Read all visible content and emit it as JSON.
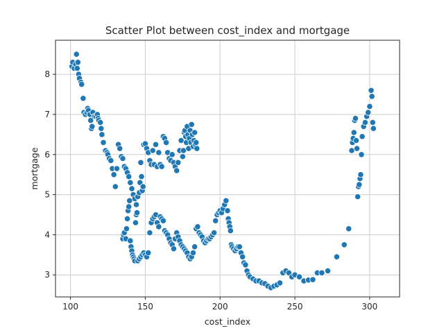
{
  "chart_data": {
    "type": "scatter",
    "title": "Scatter Plot between cost_index and mortgage",
    "xlabel": "cost_index",
    "ylabel": "mortgage",
    "xlim": [
      90,
      320
    ],
    "ylim": [
      2.45,
      8.85
    ],
    "xticks": [
      100,
      150,
      200,
      250,
      300
    ],
    "yticks": [
      3,
      4,
      5,
      6,
      7,
      8
    ],
    "grid": true,
    "color": "#1f77b4",
    "series": [
      {
        "points": [
          [
            101,
            8.2
          ],
          [
            101.5,
            8.3
          ],
          [
            102.5,
            8.15
          ],
          [
            103.5,
            8.25
          ],
          [
            104,
            8.5
          ],
          [
            104.5,
            8.15
          ],
          [
            105,
            8.3
          ],
          [
            105.5,
            8.0
          ],
          [
            106,
            7.9
          ],
          [
            107,
            7.8
          ],
          [
            107.5,
            7.75
          ],
          [
            108.5,
            7.4
          ],
          [
            109,
            7.05
          ],
          [
            110,
            7.0
          ],
          [
            111,
            7.05
          ],
          [
            111.5,
            7.15
          ],
          [
            112,
            7.1
          ],
          [
            113,
            7.0
          ],
          [
            113.5,
            6.85
          ],
          [
            114,
            6.65
          ],
          [
            114.5,
            6.7
          ],
          [
            115,
            7.05
          ],
          [
            116,
            6.95
          ],
          [
            117,
            6.95
          ],
          [
            118,
            7.0
          ],
          [
            118.5,
            6.9
          ],
          [
            119,
            6.85
          ],
          [
            120,
            6.8
          ],
          [
            120.5,
            6.65
          ],
          [
            121,
            6.5
          ],
          [
            122,
            6.3
          ],
          [
            123,
            6.1
          ],
          [
            123.5,
            6.1
          ],
          [
            124.5,
            6.05
          ],
          [
            125,
            6.0
          ],
          [
            126,
            5.9
          ],
          [
            127,
            5.85
          ],
          [
            128,
            5.65
          ],
          [
            129,
            5.5
          ],
          [
            130,
            5.2
          ],
          [
            131,
            5.65
          ],
          [
            132,
            6.25
          ],
          [
            133,
            6.15
          ],
          [
            134,
            5.95
          ],
          [
            135,
            5.9
          ],
          [
            136,
            5.7
          ],
          [
            137,
            5.65
          ],
          [
            138,
            5.55
          ],
          [
            139,
            5.45
          ],
          [
            140,
            5.3
          ],
          [
            141,
            5.15
          ],
          [
            142,
            5.0
          ],
          [
            143,
            4.9
          ],
          [
            144,
            4.75
          ],
          [
            145,
            4.95
          ],
          [
            146,
            5.05
          ],
          [
            146.5,
            5.3
          ],
          [
            147,
            5.8
          ],
          [
            147.5,
            5.45
          ],
          [
            148,
            5.1
          ],
          [
            148.5,
            5.2
          ],
          [
            149,
            6.25
          ],
          [
            150,
            6.27
          ],
          [
            151,
            6.15
          ],
          [
            152,
            6.05
          ],
          [
            153,
            5.85
          ],
          [
            154,
            5.75
          ],
          [
            155,
            6.1
          ],
          [
            156,
            5.75
          ],
          [
            157,
            6.25
          ],
          [
            158,
            5.7
          ],
          [
            159,
            6.05
          ],
          [
            160,
            5.75
          ],
          [
            161,
            5.7
          ],
          [
            162,
            6.45
          ],
          [
            163,
            6.4
          ],
          [
            164,
            6.3
          ],
          [
            165,
            6.05
          ],
          [
            166,
            5.9
          ],
          [
            167,
            5.85
          ],
          [
            168,
            6.0
          ],
          [
            169,
            5.8
          ],
          [
            170,
            5.7
          ],
          [
            171,
            5.6
          ],
          [
            172,
            5.8
          ],
          [
            173,
            6.1
          ],
          [
            174,
            6.35
          ],
          [
            175,
            5.95
          ],
          [
            175.5,
            6.1
          ],
          [
            176,
            6.55
          ],
          [
            176.5,
            6.6
          ],
          [
            177,
            6.45
          ],
          [
            177.5,
            6.3
          ],
          [
            178,
            6.7
          ],
          [
            178.5,
            6.5
          ],
          [
            179,
            6.15
          ],
          [
            179.5,
            6.4
          ],
          [
            180,
            6.6
          ],
          [
            180.5,
            6.3
          ],
          [
            181,
            6.75
          ],
          [
            181.5,
            6.5
          ],
          [
            182,
            6.2
          ],
          [
            182.5,
            6.35
          ],
          [
            183,
            6.55
          ],
          [
            183.5,
            6.25
          ],
          [
            184,
            6.3
          ],
          [
            184.5,
            6.15
          ],
          [
            135,
            3.9
          ],
          [
            135.5,
            4.0
          ],
          [
            136,
            4.05
          ],
          [
            137,
            3.9
          ],
          [
            137.5,
            4.15
          ],
          [
            138,
            4.4
          ],
          [
            138.5,
            4.6
          ],
          [
            139,
            4.7
          ],
          [
            139.5,
            4.85
          ],
          [
            140,
            3.85
          ],
          [
            140.5,
            3.7
          ],
          [
            141,
            3.6
          ],
          [
            141.5,
            3.5
          ],
          [
            142,
            3.45
          ],
          [
            142.5,
            3.4
          ],
          [
            143,
            3.35
          ],
          [
            143.5,
            4.3
          ],
          [
            144,
            4.5
          ],
          [
            144.5,
            4.55
          ],
          [
            145,
            3.35
          ],
          [
            146,
            3.4
          ],
          [
            147,
            3.45
          ],
          [
            148,
            3.5
          ],
          [
            149,
            3.55
          ],
          [
            150,
            3.5
          ],
          [
            151,
            3.45
          ],
          [
            152,
            3.55
          ],
          [
            153,
            4.05
          ],
          [
            154,
            4.3
          ],
          [
            155,
            4.4
          ],
          [
            156,
            4.45
          ],
          [
            157,
            4.5
          ],
          [
            158,
            4.3
          ],
          [
            159,
            4.2
          ],
          [
            160,
            4.45
          ],
          [
            161,
            4.4
          ],
          [
            162,
            4.35
          ],
          [
            163,
            4.1
          ],
          [
            164,
            4.05
          ],
          [
            165,
            4.0
          ],
          [
            166,
            3.9
          ],
          [
            167,
            3.8
          ],
          [
            168,
            3.75
          ],
          [
            169,
            3.65
          ],
          [
            170,
            3.9
          ],
          [
            171,
            4.05
          ],
          [
            172,
            3.95
          ],
          [
            173,
            3.85
          ],
          [
            174,
            3.75
          ],
          [
            175,
            3.7
          ],
          [
            176,
            3.65
          ],
          [
            177,
            3.6
          ],
          [
            178,
            3.55
          ],
          [
            179,
            3.45
          ],
          [
            180,
            3.4
          ],
          [
            181,
            3.45
          ],
          [
            182,
            3.55
          ],
          [
            183,
            3.7
          ],
          [
            184,
            4.15
          ],
          [
            185,
            4.2
          ],
          [
            186,
            4.05
          ],
          [
            187,
            4.0
          ],
          [
            188,
            3.95
          ],
          [
            189,
            3.85
          ],
          [
            190,
            3.8
          ],
          [
            191,
            3.85
          ],
          [
            192,
            3.9
          ],
          [
            193,
            3.9
          ],
          [
            194,
            3.95
          ],
          [
            195,
            4.0
          ],
          [
            196,
            4.05
          ],
          [
            197,
            4.35
          ],
          [
            198,
            4.5
          ],
          [
            199,
            4.55
          ],
          [
            200,
            4.6
          ],
          [
            201,
            4.55
          ],
          [
            202,
            4.65
          ],
          [
            203,
            4.75
          ],
          [
            204,
            4.85
          ],
          [
            205,
            4.6
          ],
          [
            205.5,
            4.4
          ],
          [
            206,
            4.3
          ],
          [
            206.5,
            4.2
          ],
          [
            207,
            4.1
          ],
          [
            207.5,
            3.75
          ],
          [
            208,
            3.7
          ],
          [
            209,
            3.65
          ],
          [
            210,
            3.6
          ],
          [
            211,
            3.65
          ],
          [
            212,
            3.7
          ],
          [
            213,
            3.7
          ],
          [
            214,
            3.55
          ],
          [
            215,
            3.45
          ],
          [
            216,
            3.3
          ],
          [
            217,
            3.25
          ],
          [
            218,
            3.1
          ],
          [
            219,
            3.0
          ],
          [
            220,
            2.95
          ],
          [
            222,
            2.9
          ],
          [
            224,
            2.85
          ],
          [
            226,
            2.85
          ],
          [
            228,
            2.8
          ],
          [
            230,
            2.78
          ],
          [
            232,
            2.72
          ],
          [
            234,
            2.68
          ],
          [
            236,
            2.72
          ],
          [
            238,
            2.75
          ],
          [
            240,
            2.8
          ],
          [
            242,
            3.05
          ],
          [
            244,
            3.1
          ],
          [
            246,
            3.05
          ],
          [
            248,
            2.95
          ],
          [
            250,
            3.0
          ],
          [
            253,
            2.95
          ],
          [
            256,
            2.85
          ],
          [
            259,
            2.87
          ],
          [
            262,
            2.88
          ],
          [
            265,
            3.05
          ],
          [
            268,
            3.05
          ],
          [
            272,
            3.1
          ],
          [
            278,
            3.45
          ],
          [
            283,
            3.75
          ],
          [
            286,
            4.15
          ],
          [
            288,
            6.1
          ],
          [
            288.5,
            6.3
          ],
          [
            289,
            6.4
          ],
          [
            289.5,
            6.55
          ],
          [
            290,
            6.85
          ],
          [
            290.5,
            6.9
          ],
          [
            291,
            6.35
          ],
          [
            291.5,
            6.15
          ],
          [
            292,
            4.95
          ],
          [
            292.5,
            5.2
          ],
          [
            293,
            5.25
          ],
          [
            293.5,
            5.4
          ],
          [
            294,
            5.5
          ],
          [
            294.5,
            6.0
          ],
          [
            295,
            6.45
          ],
          [
            296,
            6.7
          ],
          [
            297,
            6.8
          ],
          [
            298,
            6.95
          ],
          [
            299,
            7.05
          ],
          [
            300,
            7.2
          ],
          [
            301,
            7.6
          ],
          [
            301.5,
            7.45
          ],
          [
            302,
            6.8
          ],
          [
            302.5,
            6.65
          ]
        ]
      }
    ]
  }
}
